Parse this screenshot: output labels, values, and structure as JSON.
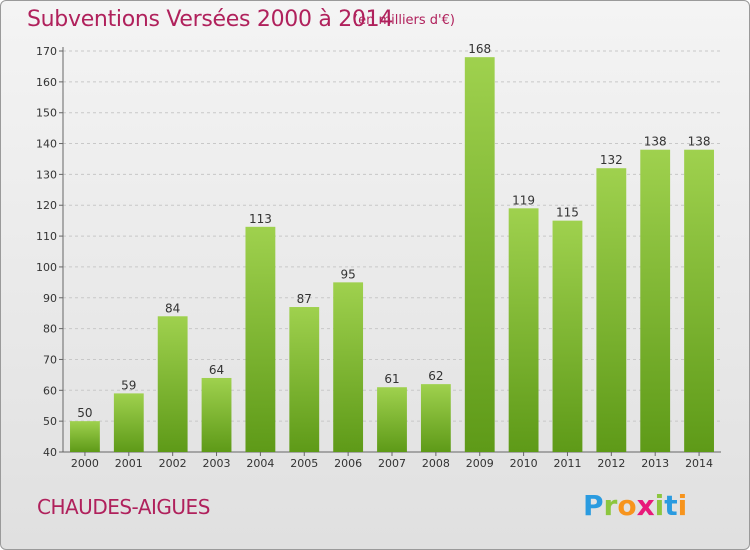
{
  "chart_data": {
    "type": "bar",
    "title": "Subventions Versées 2000 à 2014",
    "subtitle": "(en milliers d'€)",
    "categories": [
      "2000",
      "2001",
      "2002",
      "2003",
      "2004",
      "2005",
      "2006",
      "2007",
      "2008",
      "2009",
      "2010",
      "2011",
      "2012",
      "2013",
      "2014"
    ],
    "values": [
      50,
      59,
      84,
      64,
      113,
      87,
      95,
      61,
      62,
      168,
      119,
      115,
      132,
      138,
      138
    ],
    "ylim": [
      40,
      170
    ],
    "yticks": [
      40,
      50,
      60,
      70,
      80,
      90,
      100,
      110,
      120,
      130,
      140,
      150,
      160,
      170
    ],
    "grid": true,
    "bar_color_top": "#9fd14e",
    "bar_color_bottom": "#5e9a18",
    "title_color": "#b0215c"
  },
  "footer": {
    "commune": "CHAUDES-AIGUES",
    "logo": [
      "P",
      "r",
      "o",
      "x",
      "i",
      "t",
      "i"
    ]
  }
}
